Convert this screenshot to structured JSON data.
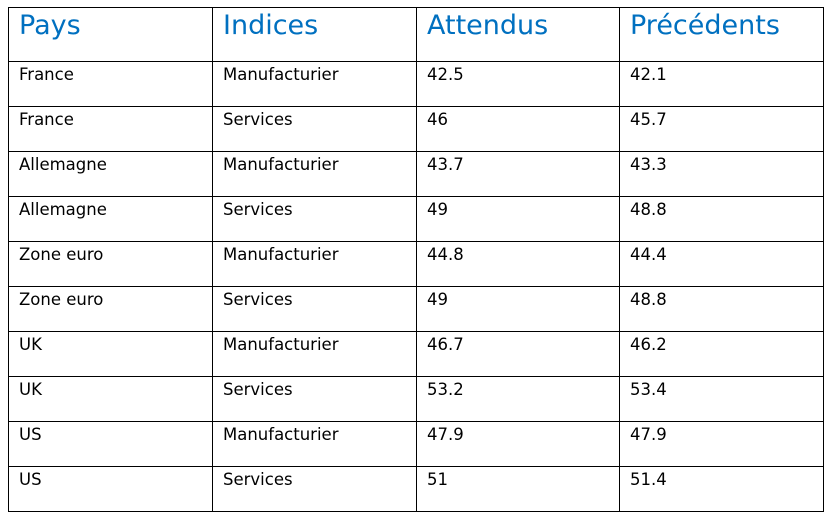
{
  "table": {
    "headers": [
      "Pays",
      "Indices",
      "Attendus",
      "Précédents"
    ],
    "rows": [
      [
        "France",
        "Manufacturier",
        "42.5",
        "42.1"
      ],
      [
        "France",
        "Services",
        "46",
        "45.7"
      ],
      [
        "Allemagne",
        "Manufacturier",
        "43.7",
        "43.3"
      ],
      [
        "Allemagne",
        "Services",
        "49",
        "48.8"
      ],
      [
        "Zone euro",
        "Manufacturier",
        "44.8",
        "44.4"
      ],
      [
        "Zone euro",
        "Services",
        "49",
        "48.8"
      ],
      [
        "UK",
        "Manufacturier",
        "46.7",
        "46.2"
      ],
      [
        "UK",
        "Services",
        "53.2",
        "53.4"
      ],
      [
        "US",
        "Manufacturier",
        "47.9",
        "47.9"
      ],
      [
        "US",
        "Services",
        "51",
        "51.4"
      ]
    ]
  },
  "colors": {
    "header_text": "#0070c0",
    "border": "#000000",
    "body_text": "#000000"
  }
}
